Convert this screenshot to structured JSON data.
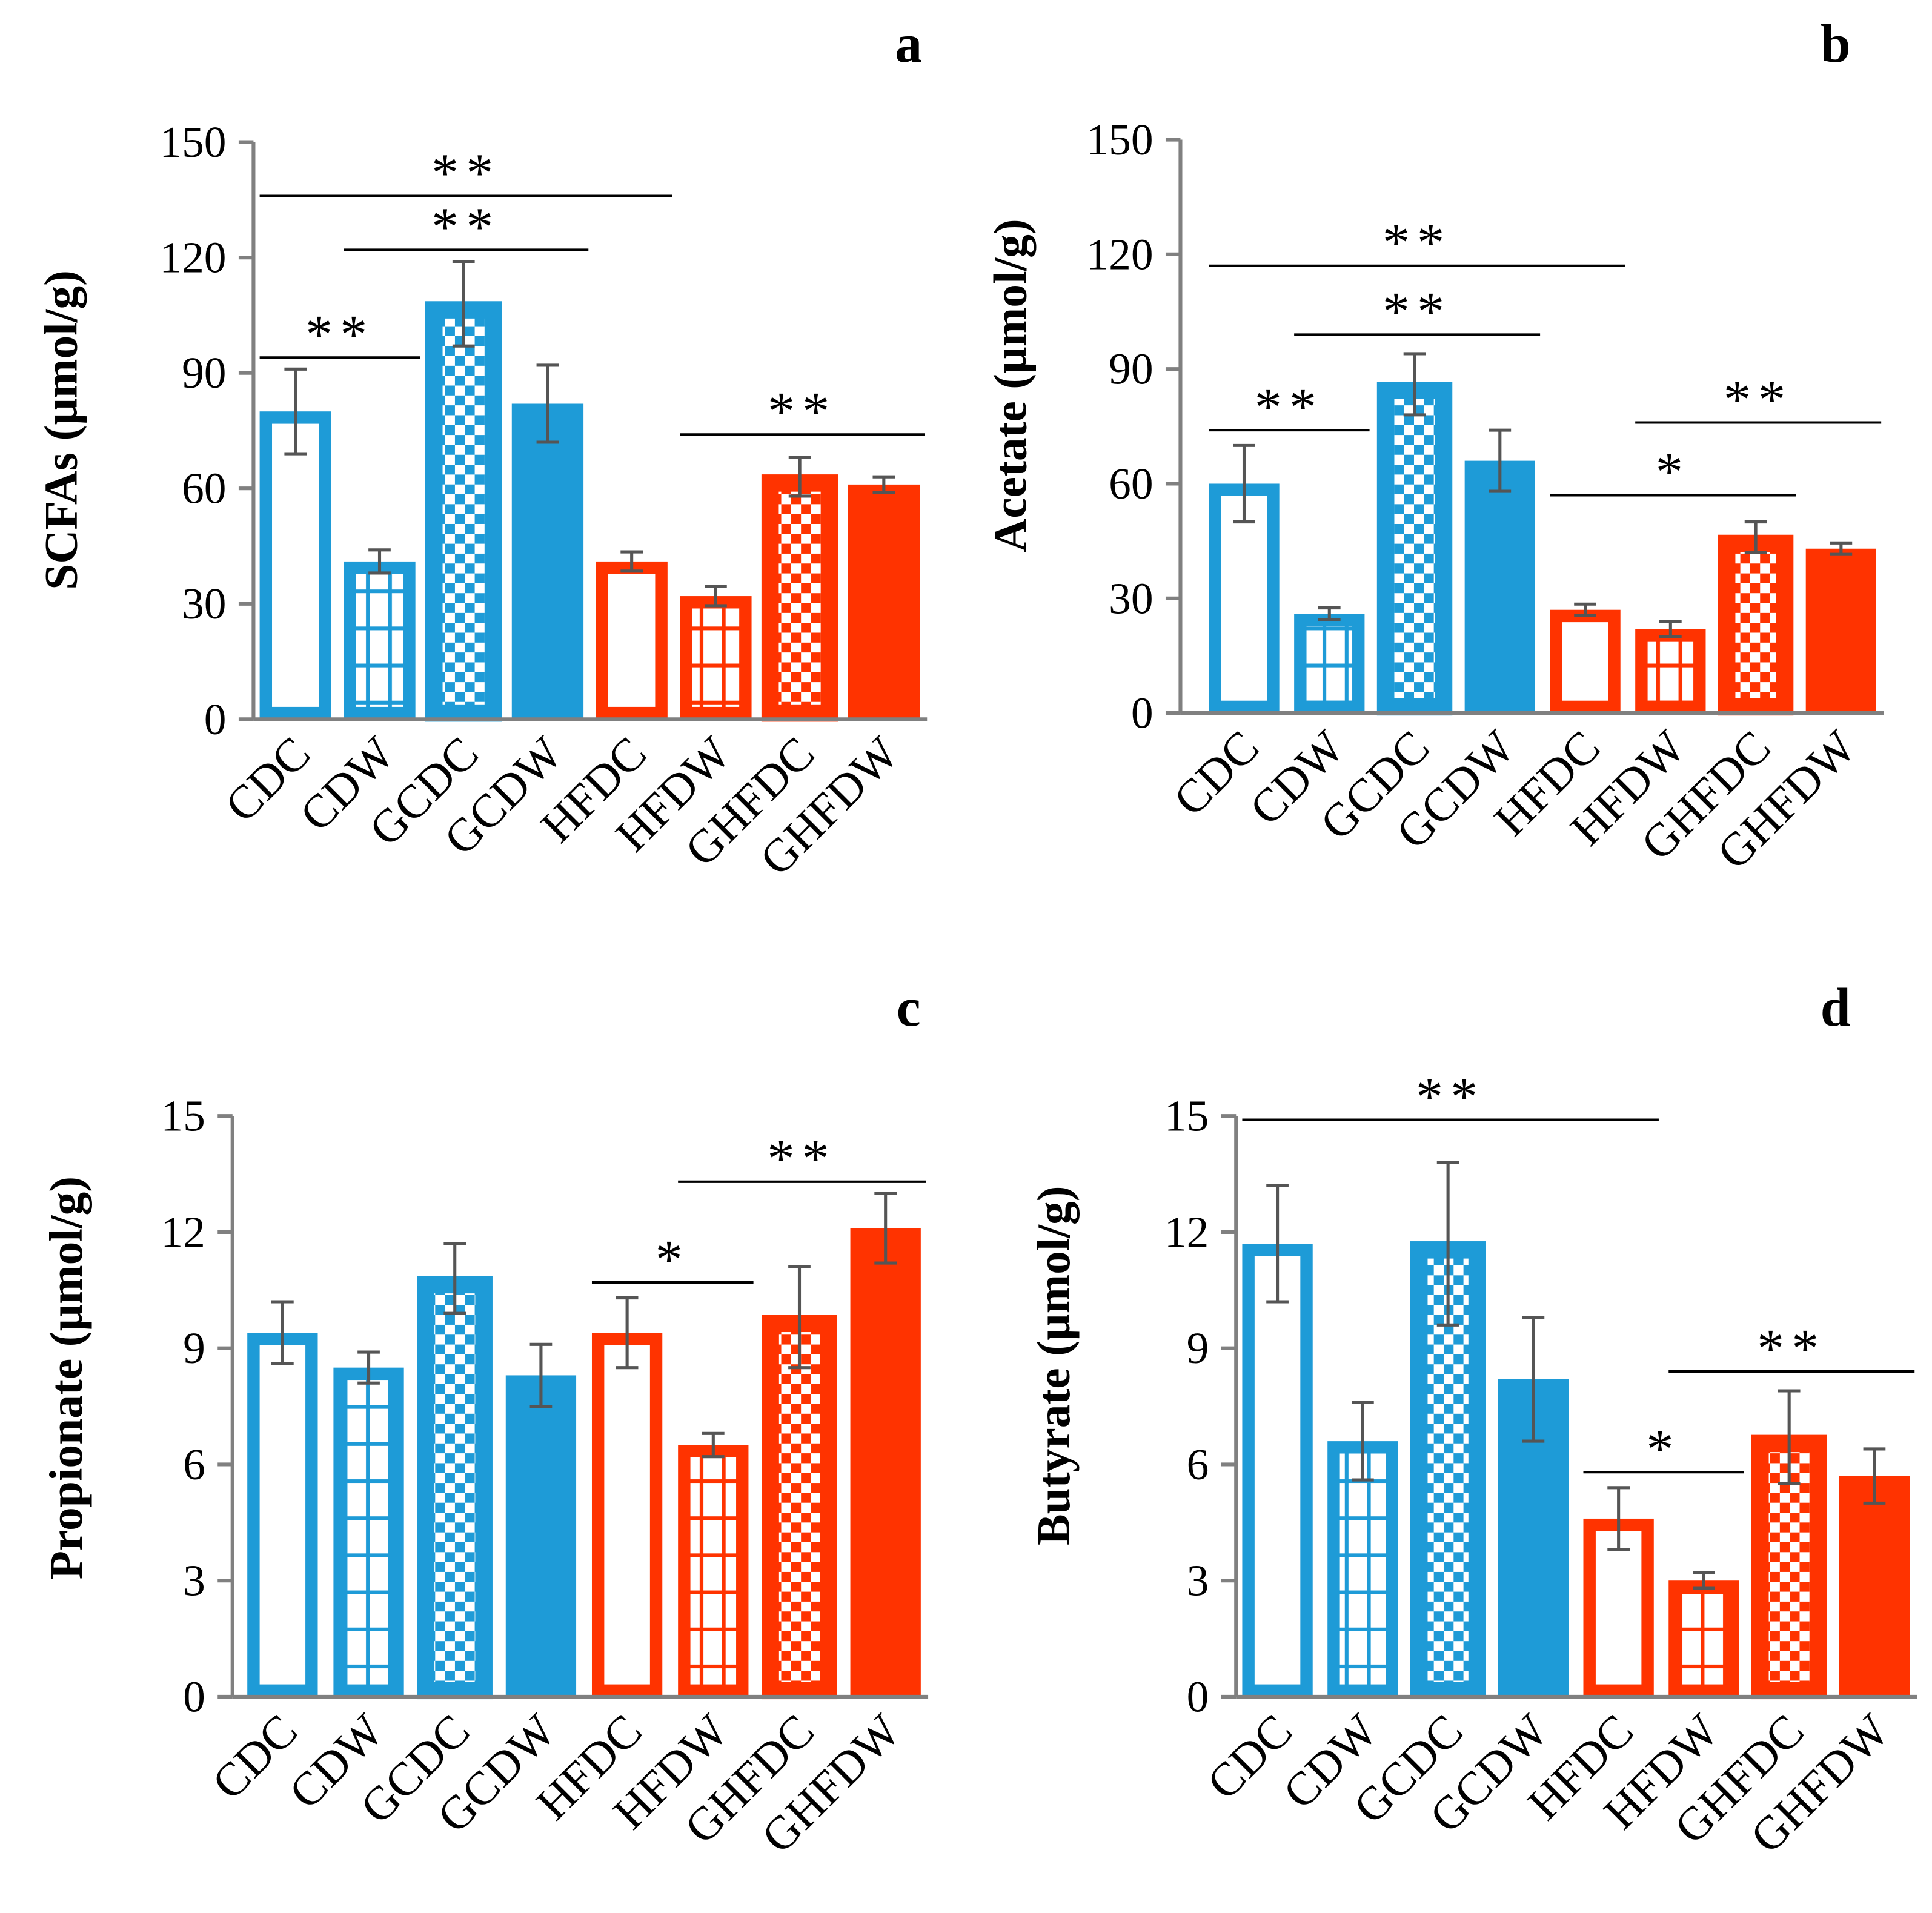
{
  "colors": {
    "control": "#1E9BD7",
    "highfat": "#FF3300",
    "error": "#555555"
  },
  "chart_data": [
    {
      "type": "bar",
      "panel_letter": "a",
      "ylabel": "SCFAs (µmol/g)",
      "ylim": [
        0,
        150
      ],
      "yticks": [
        "0",
        "30",
        "60",
        "90",
        "120",
        "150"
      ],
      "categories": [
        "CDC",
        "CDW",
        "GCDC",
        "GCDW",
        "HFDC",
        "HFDW",
        "GHFDC",
        "GHFDW"
      ],
      "patterns": [
        "outline",
        "grid",
        "checker",
        "solid",
        "outline",
        "grid",
        "checker",
        "solid"
      ],
      "values": [
        80,
        41,
        108,
        82,
        41,
        32,
        63,
        61
      ],
      "errors": [
        11,
        3,
        11,
        10,
        2.5,
        2.5,
        5,
        2
      ],
      "significance": [
        {
          "from": 0,
          "to": 1,
          "level": 94,
          "label": "**"
        },
        {
          "from": 1,
          "to": 3,
          "level": 122,
          "label": "**"
        },
        {
          "from": 0,
          "to": 4,
          "level": 136,
          "label": "**"
        },
        {
          "from": 5,
          "to": 7,
          "level": 74,
          "label": "**"
        }
      ]
    },
    {
      "type": "bar",
      "panel_letter": "b",
      "ylabel": "Acetate (µmol/g)",
      "ylim": [
        0,
        150
      ],
      "yticks": [
        "0",
        "30",
        "60",
        "90",
        "120",
        "150"
      ],
      "categories": [
        "CDC",
        "CDW",
        "GCDC",
        "GCDW",
        "HFDC",
        "HFDW",
        "GHFDC",
        "GHFDW"
      ],
      "patterns": [
        "outline",
        "grid",
        "checker",
        "solid",
        "outline",
        "grid",
        "checker",
        "solid"
      ],
      "values": [
        60,
        26,
        86,
        66,
        27,
        22,
        46,
        43
      ],
      "errors": [
        10,
        1.5,
        8,
        8,
        1.5,
        2,
        4,
        1.5
      ],
      "significance": [
        {
          "from": 0,
          "to": 1,
          "level": 74,
          "label": "**"
        },
        {
          "from": 1,
          "to": 3,
          "level": 99,
          "label": "**"
        },
        {
          "from": 0,
          "to": 4,
          "level": 117,
          "label": "**"
        },
        {
          "from": 4,
          "to": 6,
          "level": 57,
          "label": "*"
        },
        {
          "from": 5,
          "to": 7,
          "level": 76,
          "label": "**"
        }
      ]
    },
    {
      "type": "bar",
      "panel_letter": "c",
      "ylabel": "Propionate (µmol/g)",
      "ylim": [
        0,
        15
      ],
      "yticks": [
        "0",
        "3",
        "6",
        "9",
        "12",
        "15"
      ],
      "categories": [
        "CDC",
        "CDW",
        "GCDC",
        "GCDW",
        "HFDC",
        "HFDW",
        "GHFDC",
        "GHFDW"
      ],
      "patterns": [
        "outline",
        "grid",
        "checker",
        "solid",
        "outline",
        "grid",
        "checker",
        "solid"
      ],
      "values": [
        9.4,
        8.5,
        10.8,
        8.3,
        9.4,
        6.5,
        9.8,
        12.1
      ],
      "errors": [
        0.8,
        0.4,
        0.9,
        0.8,
        0.9,
        0.3,
        1.3,
        0.9
      ],
      "significance": [
        {
          "from": 4,
          "to": 5,
          "level": 10.7,
          "label": "*"
        },
        {
          "from": 5,
          "to": 7,
          "level": 13.3,
          "label": "**"
        }
      ]
    },
    {
      "type": "bar",
      "panel_letter": "d",
      "ylabel": "Butyrate (µmol/g)",
      "ylim": [
        0,
        15
      ],
      "yticks": [
        "0",
        "3",
        "6",
        "9",
        "12",
        "15"
      ],
      "categories": [
        "CDC",
        "CDW",
        "GCDC",
        "GCDW",
        "HFDC",
        "HFDW",
        "GHFDC",
        "GHFDW"
      ],
      "patterns": [
        "outline",
        "grid",
        "checker",
        "solid",
        "outline",
        "grid",
        "checker",
        "solid"
      ],
      "values": [
        11.7,
        6.6,
        11.7,
        8.2,
        4.6,
        3.0,
        6.7,
        5.7
      ],
      "errors": [
        1.5,
        1.0,
        2.1,
        1.6,
        0.8,
        0.2,
        1.2,
        0.7
      ],
      "significance": [
        {
          "from": 0,
          "to": 4,
          "level": 14.9,
          "label": "**"
        },
        {
          "from": 4,
          "to": 5,
          "level": 5.8,
          "label": "*"
        },
        {
          "from": 5,
          "to": 7,
          "level": 8.4,
          "label": "**"
        }
      ]
    }
  ]
}
